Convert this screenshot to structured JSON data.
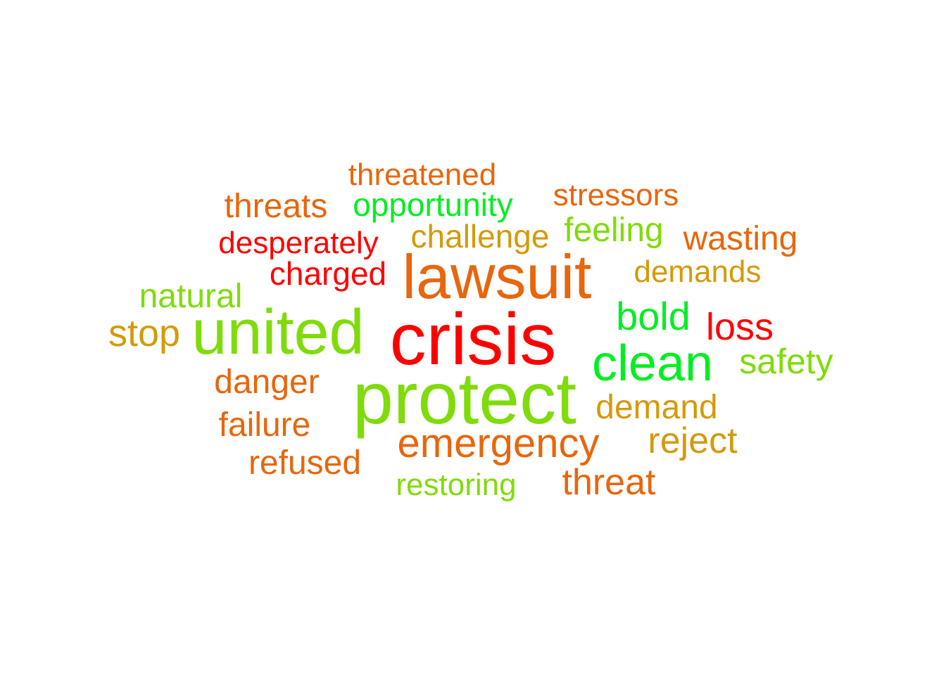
{
  "palette": {
    "red": "#ff0000",
    "orange": "#e8660c",
    "amber": "#d49a0a",
    "lime": "#7fdc0a",
    "green": "#00ee22"
  },
  "words": [
    {
      "text": "threatened",
      "color": "#e8660c"
    },
    {
      "text": "threats",
      "color": "#e8660c"
    },
    {
      "text": "opportunity",
      "color": "#00ee22"
    },
    {
      "text": "stressors",
      "color": "#e8660c"
    },
    {
      "text": "desperately",
      "color": "#ff0000"
    },
    {
      "text": "challenge",
      "color": "#d49a0a"
    },
    {
      "text": "feeling",
      "color": "#7fdc0a"
    },
    {
      "text": "wasting",
      "color": "#e8660c"
    },
    {
      "text": "charged",
      "color": "#ff0000"
    },
    {
      "text": "lawsuit",
      "color": "#e8660c"
    },
    {
      "text": "demands",
      "color": "#d49a0a"
    },
    {
      "text": "natural",
      "color": "#7fdc0a"
    },
    {
      "text": "bold",
      "color": "#00ee22"
    },
    {
      "text": "stop",
      "color": "#d49a0a"
    },
    {
      "text": "united",
      "color": "#7fdc0a"
    },
    {
      "text": "crisis",
      "color": "#ff0000"
    },
    {
      "text": "loss",
      "color": "#ff0000"
    },
    {
      "text": "clean",
      "color": "#00ee22"
    },
    {
      "text": "safety",
      "color": "#7fdc0a"
    },
    {
      "text": "danger",
      "color": "#e8660c"
    },
    {
      "text": "protect",
      "color": "#7fdc0a"
    },
    {
      "text": "demand",
      "color": "#d49a0a"
    },
    {
      "text": "failure",
      "color": "#e8660c"
    },
    {
      "text": "emergency",
      "color": "#e8660c"
    },
    {
      "text": "reject",
      "color": "#d49a0a"
    },
    {
      "text": "refused",
      "color": "#e8660c"
    },
    {
      "text": "restoring",
      "color": "#7fdc0a"
    },
    {
      "text": "threat",
      "color": "#e8660c"
    }
  ]
}
